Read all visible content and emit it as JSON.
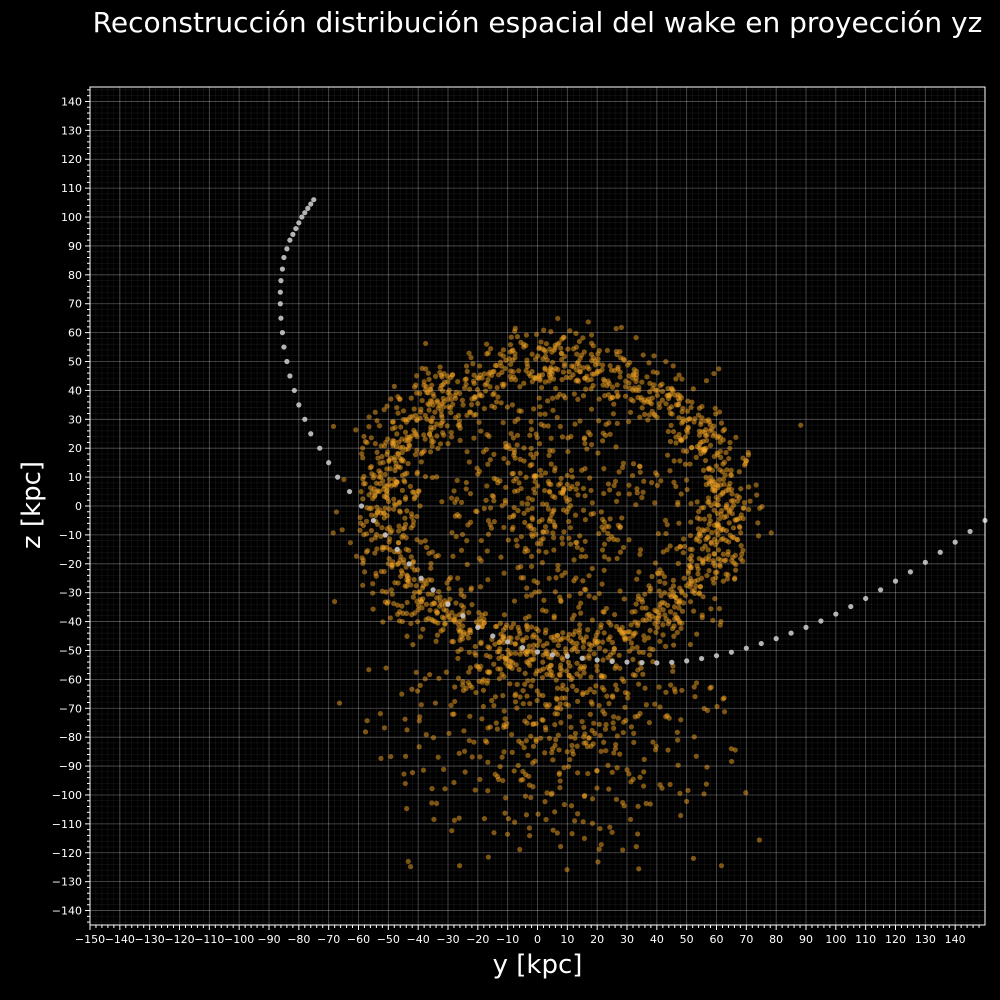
{
  "chart_data": {
    "type": "scatter",
    "title": "Reconstrucción distribución espacial del wake en proyección yz",
    "xlabel": "y [kpc]",
    "ylabel": "z [kpc]",
    "xlim": [
      -150,
      150
    ],
    "ylim": [
      -145,
      145
    ],
    "x_ticks": [
      -150,
      -140,
      -130,
      -120,
      -110,
      -100,
      -90,
      -80,
      -70,
      -60,
      -50,
      -40,
      -30,
      -20,
      -10,
      0,
      10,
      20,
      30,
      40,
      50,
      60,
      70,
      80,
      90,
      100,
      110,
      120,
      130,
      140
    ],
    "y_ticks": [
      -140,
      -130,
      -120,
      -110,
      -100,
      -90,
      -80,
      -70,
      -60,
      -50,
      -40,
      -30,
      -20,
      -10,
      0,
      10,
      20,
      30,
      40,
      50,
      60,
      70,
      80,
      90,
      100,
      110,
      120,
      130,
      140
    ],
    "grid": true,
    "background": "#000000",
    "colors": {
      "wake": "#f5a623",
      "orbit": "#c8c8c8",
      "grid": "#ffffff",
      "frame": "#ffffff"
    },
    "series": [
      {
        "kind": "orbit",
        "color": "#c8c8c8",
        "x": [
          -75,
          -76,
          -77,
          -78,
          -79,
          -80,
          -81,
          -82,
          -83,
          -84,
          -85,
          -85.5,
          -86,
          -86.2,
          -86.2,
          -86,
          -85.5,
          -85,
          -84,
          -83,
          -81.5,
          -80,
          -78,
          -76,
          -73,
          -70,
          -67,
          -63,
          -59,
          -55,
          -51,
          -47,
          -43,
          -39,
          -35,
          -30,
          -25,
          -20,
          -15,
          -10,
          -5,
          0,
          5,
          10,
          15,
          20,
          25,
          30,
          35,
          40,
          45,
          50,
          55,
          60,
          65,
          70,
          75,
          80,
          85,
          90,
          95,
          100,
          105,
          110,
          115,
          120,
          125,
          130,
          135,
          140,
          145,
          150
        ],
        "y": [
          106,
          104.5,
          103,
          101.5,
          100,
          98,
          96,
          94,
          92,
          89,
          86,
          82,
          78,
          74,
          70,
          65,
          60,
          55,
          50,
          45,
          40,
          35,
          30,
          25,
          20,
          15,
          10,
          5,
          0,
          -5,
          -10,
          -15,
          -20,
          -25,
          -29,
          -34,
          -38,
          -42,
          -45,
          -47,
          -49,
          -50.5,
          -51.5,
          -52,
          -52.7,
          -53.3,
          -53.8,
          -54,
          -54.2,
          -54.3,
          -54.1,
          -53.6,
          -52.8,
          -51.8,
          -50.6,
          -49.2,
          -47.6,
          -45.9,
          -44,
          -42,
          -39.8,
          -37.4,
          -34.8,
          -32,
          -29,
          -26,
          -22.8,
          -19.5,
          -16,
          -12.5,
          -8.8,
          -5
        ]
      },
      {
        "kind": "wake",
        "color": "#f5a623",
        "n_points": 2500,
        "ring_center": [
          5,
          0
        ],
        "ring_radius_x": 57,
        "ring_radius_y": 50,
        "x_range": [
          -96,
          96
        ],
        "y_range": [
          -131,
          90
        ]
      }
    ]
  }
}
